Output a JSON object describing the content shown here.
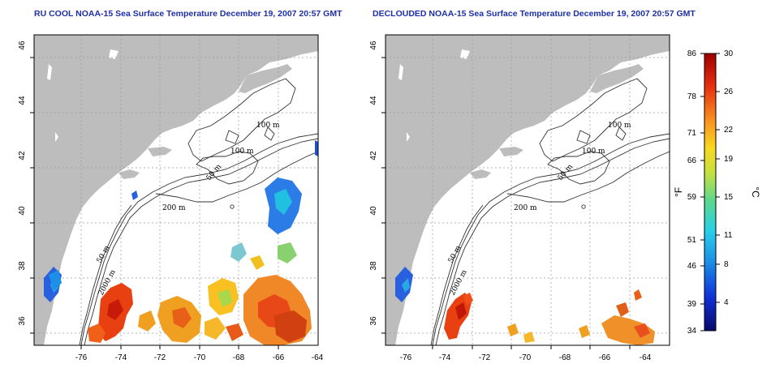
{
  "maps": [
    {
      "id": "left",
      "title": "RU COOL NOAA-15 Sea Surface Temperature December 19, 2007 20:57 GMT",
      "lon_ticks": [
        "-76",
        "-74",
        "-72",
        "-70",
        "-68",
        "-66",
        "-64"
      ],
      "lat_ticks": [
        "36",
        "38",
        "40",
        "42",
        "44",
        "46"
      ],
      "contour_labels": [
        "100 m",
        "100 m",
        "50 m",
        "200 m",
        "50 m",
        "2000 m"
      ]
    },
    {
      "id": "right",
      "title": "DECLOUDED NOAA-15 Sea Surface Temperature December 19, 2007 20:57 GMT",
      "lon_ticks": [
        "-76",
        "-74",
        "-72",
        "-70",
        "-68",
        "-66",
        "-64"
      ],
      "lat_ticks": [
        "36",
        "38",
        "40",
        "42",
        "44",
        "46"
      ],
      "contour_labels": [
        "100 m",
        "100 m",
        "50 m",
        "200 m",
        "50 m",
        "2000 m"
      ]
    }
  ],
  "colorbar": {
    "fahrenheit_ticks": [
      "86",
      "78",
      "71",
      "66",
      "59",
      "51",
      "46",
      "39",
      "34"
    ],
    "celsius_ticks": [
      "30",
      "26",
      "22",
      "19",
      "15",
      "11",
      "8",
      "4"
    ],
    "fahrenheit_unit": "°F",
    "celsius_unit": "°C",
    "colors": [
      "#08086b",
      "#1030d8",
      "#1c8fe8",
      "#28d0e8",
      "#5cd88c",
      "#c8e040",
      "#f8d820",
      "#f89020",
      "#e83010",
      "#a00000"
    ]
  },
  "colors": {
    "land": "#bdbdbd",
    "ocean": "#ffffff",
    "title": "#1c2fa6",
    "warm_patch": "#e84010",
    "mid_patch": "#f0a020",
    "cool_patch": "#2860e0"
  }
}
